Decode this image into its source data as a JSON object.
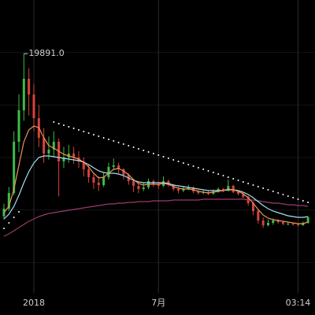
{
  "chart_data": {
    "type": "candlestick",
    "categories": [
      null,
      null,
      null,
      null,
      null,
      null,
      "2018",
      null,
      null,
      null,
      null,
      null,
      null,
      null,
      null,
      null,
      null,
      null,
      null,
      null,
      null,
      null,
      null,
      null,
      null,
      null,
      null,
      null,
      null,
      null,
      null,
      "7月",
      null,
      null,
      null,
      null,
      null,
      null,
      null,
      null,
      null,
      null,
      null,
      null,
      null,
      null,
      null,
      null,
      null,
      null,
      null,
      null,
      null,
      null,
      null,
      null,
      null,
      null,
      null,
      "03:14",
      null,
      null
    ],
    "open": [
      4400,
      5125,
      6625,
      11500,
      14500,
      17500,
      16000,
      13750,
      11875,
      10375,
      10750,
      11500,
      9625,
      10000,
      10375,
      10000,
      9625,
      8875,
      8125,
      7600,
      7375,
      8125,
      9100,
      9250,
      8875,
      8350,
      7750,
      7300,
      7000,
      7150,
      7750,
      7450,
      7300,
      7750,
      7375,
      7000,
      6850,
      7000,
      7150,
      6775,
      6625,
      6700,
      6550,
      6775,
      7000,
      6850,
      7300,
      6700,
      6550,
      6250,
      5650,
      4900,
      4000,
      3550,
      3775,
      4000,
      3850,
      3700,
      3700,
      3625,
      3550,
      3775
    ],
    "high": [
      5600,
      7200,
      12500,
      16000,
      19891,
      18500,
      17000,
      15000,
      12800,
      12000,
      12500,
      11800,
      11000,
      11200,
      11000,
      10600,
      10000,
      9300,
      8500,
      8200,
      8600,
      9500,
      9900,
      9500,
      9000,
      8500,
      7900,
      7500,
      7600,
      8000,
      7900,
      7700,
      8200,
      7900,
      7500,
      7200,
      7300,
      7400,
      7250,
      6900,
      6850,
      6800,
      6950,
      7150,
      7100,
      7900,
      7400,
      6800,
      6650,
      6350,
      5800,
      5000,
      4300,
      4100,
      4200,
      4150,
      3950,
      3850,
      3800,
      3750,
      3900,
      4400
    ],
    "low": [
      4100,
      4900,
      6400,
      10500,
      13500,
      14000,
      12500,
      11000,
      9500,
      9800,
      10000,
      6300,
      9000,
      9500,
      9400,
      9000,
      8200,
      7600,
      7000,
      6800,
      7200,
      7900,
      8800,
      8500,
      7900,
      7400,
      6700,
      6600,
      6800,
      7000,
      7200,
      7000,
      7200,
      7200,
      6800,
      6600,
      6700,
      6900,
      6600,
      6450,
      6500,
      6400,
      6450,
      6650,
      6700,
      6750,
      6600,
      6400,
      6100,
      5400,
      4500,
      3700,
      3300,
      3450,
      3600,
      3700,
      3550,
      3550,
      3500,
      3450,
      3500,
      3700
    ],
    "close": [
      5125,
      6625,
      11500,
      14500,
      17500,
      16000,
      13750,
      11875,
      10375,
      10750,
      11500,
      9625,
      10000,
      10375,
      10000,
      9625,
      8875,
      8125,
      7600,
      7375,
      8125,
      9100,
      9250,
      8875,
      8350,
      7750,
      7300,
      7000,
      7150,
      7750,
      7450,
      7300,
      7750,
      7375,
      7000,
      6850,
      7000,
      7150,
      6775,
      6625,
      6700,
      6550,
      6775,
      7000,
      6850,
      7300,
      6700,
      6550,
      6250,
      5650,
      4900,
      4000,
      3550,
      3775,
      4000,
      3850,
      3700,
      3700,
      3625,
      3550,
      3775,
      4300
    ],
    "up_color": "#3dbd46",
    "down_color": "#d8433c",
    "series": [
      {
        "style": "line",
        "color": "#9b3a6c",
        "values": [
          2500,
          2725,
          3025,
          3325,
          3625,
          3925,
          4150,
          4375,
          4525,
          4675,
          4750,
          4825,
          4900,
          4975,
          5050,
          5125,
          5200,
          5275,
          5350,
          5425,
          5500,
          5575,
          5575,
          5650,
          5650,
          5725,
          5725,
          5800,
          5800,
          5800,
          5875,
          5875,
          5875,
          5875,
          5950,
          5950,
          5950,
          5950,
          5950,
          5950,
          6025,
          6025,
          6025,
          6025,
          6025,
          6025,
          6025,
          6025,
          6025,
          5950,
          5950,
          5875,
          5800,
          5725,
          5650,
          5650,
          5575,
          5500,
          5500,
          5425,
          5425,
          5350
        ]
      },
      {
        "style": "line",
        "color": "#a6def0",
        "values": [
          4150,
          4600,
          5350,
          6400,
          7600,
          8650,
          9475,
          10000,
          10150,
          10150,
          10075,
          10000,
          9925,
          9850,
          9775,
          9700,
          9550,
          9325,
          9025,
          8725,
          8575,
          8500,
          8500,
          8425,
          8275,
          8050,
          7825,
          7675,
          7600,
          7600,
          7600,
          7600,
          7600,
          7525,
          7375,
          7300,
          7225,
          7150,
          7075,
          7000,
          6925,
          6850,
          6850,
          6850,
          6850,
          6925,
          6925,
          6850,
          6700,
          6475,
          6175,
          5800,
          5425,
          5125,
          4900,
          4750,
          4600,
          4450,
          4375,
          4300,
          4300,
          4375
        ]
      },
      {
        "style": "line",
        "color": "#e89458",
        "values": [
          4750,
          5350,
          7000,
          9250,
          11500,
          12625,
          13000,
          12850,
          11875,
          11125,
          10900,
          10600,
          10300,
          10150,
          10000,
          9850,
          9550,
          9100,
          8500,
          8050,
          8125,
          8500,
          8875,
          8950,
          8725,
          8350,
          7900,
          7525,
          7375,
          7450,
          7450,
          7450,
          7525,
          7450,
          7225,
          7075,
          7000,
          7000,
          6925,
          6775,
          6700,
          6625,
          6700,
          6775,
          6850,
          7000,
          6925,
          6775,
          6550,
          6175,
          5650,
          5050,
          4525,
          4225,
          4075,
          4000,
          3925,
          3850,
          3775,
          3700,
          3700,
          3850
        ]
      },
      {
        "style": "dots",
        "color": "#ffffff",
        "values": [
          3250,
          3775,
          4300,
          4825,
          null,
          null,
          null,
          null,
          null,
          null,
          13375,
          13225,
          13075,
          12925,
          12775,
          12625,
          12475,
          12325,
          12175,
          12025,
          11875,
          11725,
          11575,
          11425,
          11275,
          11125,
          10975,
          10825,
          10675,
          10525,
          10375,
          10225,
          10075,
          9925,
          9775,
          9625,
          9475,
          9325,
          9175,
          9025,
          8875,
          8725,
          8575,
          8425,
          8275,
          8125,
          7975,
          7825,
          7675,
          7525,
          7375,
          7225,
          7075,
          6925,
          6775,
          6625,
          6475,
          6325,
          6175,
          6025,
          5875,
          5725
        ]
      }
    ],
    "high_label": {
      "value": 19891,
      "label": "19891.0"
    },
    "ylim": [
      -5000,
      25000
    ],
    "yticks": [
      20000,
      15000,
      10000,
      5000,
      0
    ],
    "grid": true
  }
}
